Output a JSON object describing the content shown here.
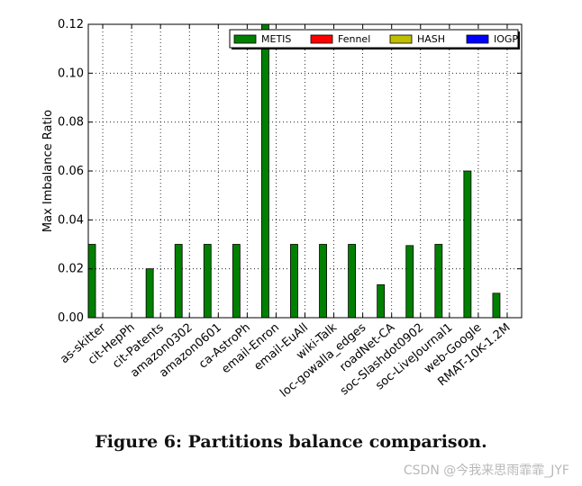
{
  "chart_data": {
    "type": "bar",
    "ylabel": "Max Imbalance Ratio",
    "ylim": [
      0,
      0.12
    ],
    "yticks": [
      "0.00",
      "0.02",
      "0.04",
      "0.06",
      "0.08",
      "0.10",
      "0.12"
    ],
    "grid": true,
    "legend_position": "top-right",
    "categories": [
      "as-skitter",
      "cit-HepPh",
      "cit-Patents",
      "amazon0302",
      "amazon0601",
      "ca-AstroPh",
      "email-Enron",
      "email-EuAll",
      "wiki-Talk",
      "loc-gowalla_edges",
      "roadNet-CA",
      "soc-Slashdot0902",
      "soc-LiveJournal1",
      "web-Google",
      "RMAT-10K-1.2M"
    ],
    "series": [
      {
        "name": "METIS",
        "color": "#008000",
        "values": [
          0.03,
          0,
          0.02,
          0.03,
          0.03,
          0.03,
          0.12,
          0.03,
          0.03,
          0.03,
          0.0135,
          0.0295,
          0.03,
          0.06,
          0.01
        ]
      },
      {
        "name": "Fennel",
        "color": "#ff0000",
        "values": [
          0,
          0,
          0,
          0,
          0,
          0,
          0,
          0,
          0,
          0,
          0,
          0,
          0,
          0,
          0
        ]
      },
      {
        "name": "HASH",
        "color": "#bfbf00",
        "values": [
          0,
          0,
          0,
          0,
          0,
          0,
          0,
          0,
          0,
          0,
          0,
          0,
          0,
          0,
          0
        ]
      },
      {
        "name": "IOGP",
        "color": "#0000ff",
        "values": [
          0,
          0,
          0,
          0,
          0,
          0,
          0,
          0,
          0,
          0,
          0,
          0,
          0,
          0,
          0
        ]
      }
    ]
  },
  "caption": "Figure 6: Partitions balance comparison.",
  "watermark": "CSDN @今我来思雨霏霏_JYF"
}
